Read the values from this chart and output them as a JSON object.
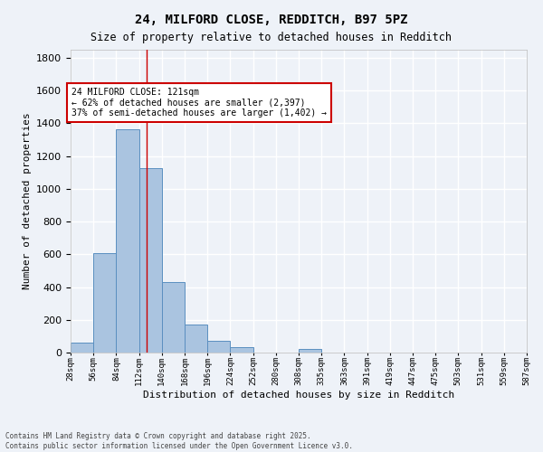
{
  "title_line1": "24, MILFORD CLOSE, REDDITCH, B97 5PZ",
  "title_line2": "Size of property relative to detached houses in Redditch",
  "xlabel": "Distribution of detached houses by size in Redditch",
  "ylabel": "Number of detached properties",
  "bar_left_edges": [
    28,
    56,
    84,
    112,
    140,
    168,
    196,
    224,
    252,
    280,
    308,
    335,
    363,
    391,
    419,
    447,
    475,
    503,
    531,
    559
  ],
  "bar_heights": [
    60,
    605,
    1365,
    1125,
    430,
    170,
    70,
    35,
    0,
    0,
    20,
    0,
    0,
    0,
    0,
    0,
    0,
    0,
    0,
    0
  ],
  "bin_width": 28,
  "bar_color": "#aac4e0",
  "bar_edge_color": "#5a8fc0",
  "property_size": 121,
  "annotation_text": "24 MILFORD CLOSE: 121sqm\n← 62% of detached houses are smaller (2,397)\n37% of semi-detached houses are larger (1,402) →",
  "annotation_box_color": "#ffffff",
  "annotation_border_color": "#cc0000",
  "vline_color": "#cc0000",
  "ylim": [
    0,
    1850
  ],
  "yticks": [
    0,
    200,
    400,
    600,
    800,
    1000,
    1200,
    1400,
    1600,
    1800
  ],
  "tick_labels": [
    "28sqm",
    "56sqm",
    "84sqm",
    "112sqm",
    "140sqm",
    "168sqm",
    "196sqm",
    "224sqm",
    "252sqm",
    "280sqm",
    "308sqm",
    "335sqm",
    "363sqm",
    "391sqm",
    "419sqm",
    "447sqm",
    "475sqm",
    "503sqm",
    "531sqm",
    "559sqm",
    "587sqm"
  ],
  "footnote": "Contains HM Land Registry data © Crown copyright and database right 2025.\nContains public sector information licensed under the Open Government Licence v3.0.",
  "bg_color": "#eef2f8",
  "grid_color": "#ffffff"
}
